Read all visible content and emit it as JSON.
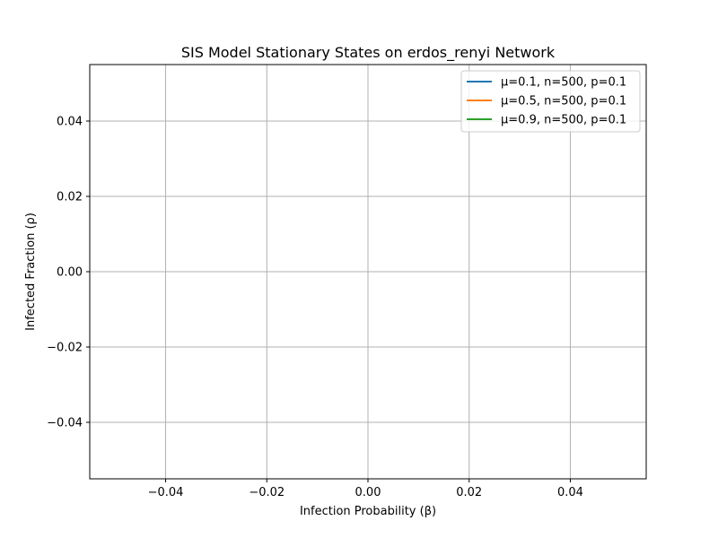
{
  "chart_data": {
    "type": "line",
    "title": "SIS Model Stationary States on erdos_renyi Network",
    "xlabel": "Infection Probability (β)",
    "ylabel": "Infected Fraction (ρ)",
    "xlim": [
      -0.055,
      0.055
    ],
    "ylim": [
      -0.055,
      0.055
    ],
    "xticks": [
      -0.04,
      -0.02,
      0.0,
      0.02,
      0.04
    ],
    "xtick_labels": [
      "−0.04",
      "−0.02",
      "0.00",
      "0.02",
      "0.04"
    ],
    "yticks": [
      -0.04,
      -0.02,
      0.0,
      0.02,
      0.04
    ],
    "ytick_labels": [
      "−0.04",
      "−0.02",
      "0.00",
      "0.02",
      "0.04"
    ],
    "grid": true,
    "legend_position": "top-right",
    "series": [
      {
        "name": "μ=0.1, n=500, p=0.1",
        "color": "#1f77b4",
        "x": [],
        "y": []
      },
      {
        "name": "μ=0.5, n=500, p=0.1",
        "color": "#ff7f0e",
        "x": [],
        "y": []
      },
      {
        "name": "μ=0.9, n=500, p=0.1",
        "color": "#2ca02c",
        "x": [],
        "y": []
      }
    ]
  }
}
